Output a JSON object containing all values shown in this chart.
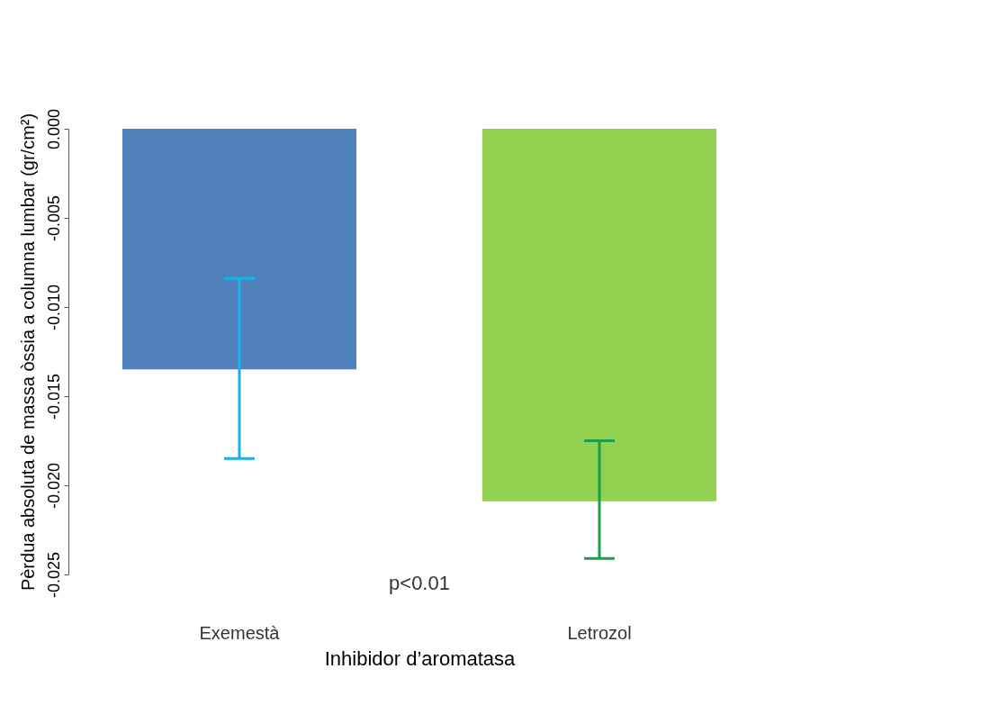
{
  "chart_data": {
    "type": "bar",
    "categories": [
      "Exemestà",
      "Letrozol"
    ],
    "values": [
      -0.0135,
      -0.0209
    ],
    "colors": [
      "#4f81bd",
      "#92d050"
    ],
    "errors": [
      [
        -0.0185,
        -0.0084
      ],
      [
        -0.0241,
        -0.0175
      ]
    ],
    "xlabel": "Inhibidor d’aromatasa",
    "ylabel": "Pèrdua absoluta de massa òssia a columna lumbar (gr/cm²)",
    "ylim": [
      -0.025,
      0
    ],
    "yticks": [
      {
        "value": 0,
        "label": "0.000"
      },
      {
        "value": -0.005,
        "label": "-0.005"
      },
      {
        "value": -0.01,
        "label": "-0.010"
      },
      {
        "value": -0.015,
        "label": "-0.015"
      },
      {
        "value": -0.02,
        "label": "-0.020"
      },
      {
        "value": -0.025,
        "label": "-0.025"
      }
    ],
    "annotations": [
      "p<0.01"
    ],
    "grid": false
  }
}
